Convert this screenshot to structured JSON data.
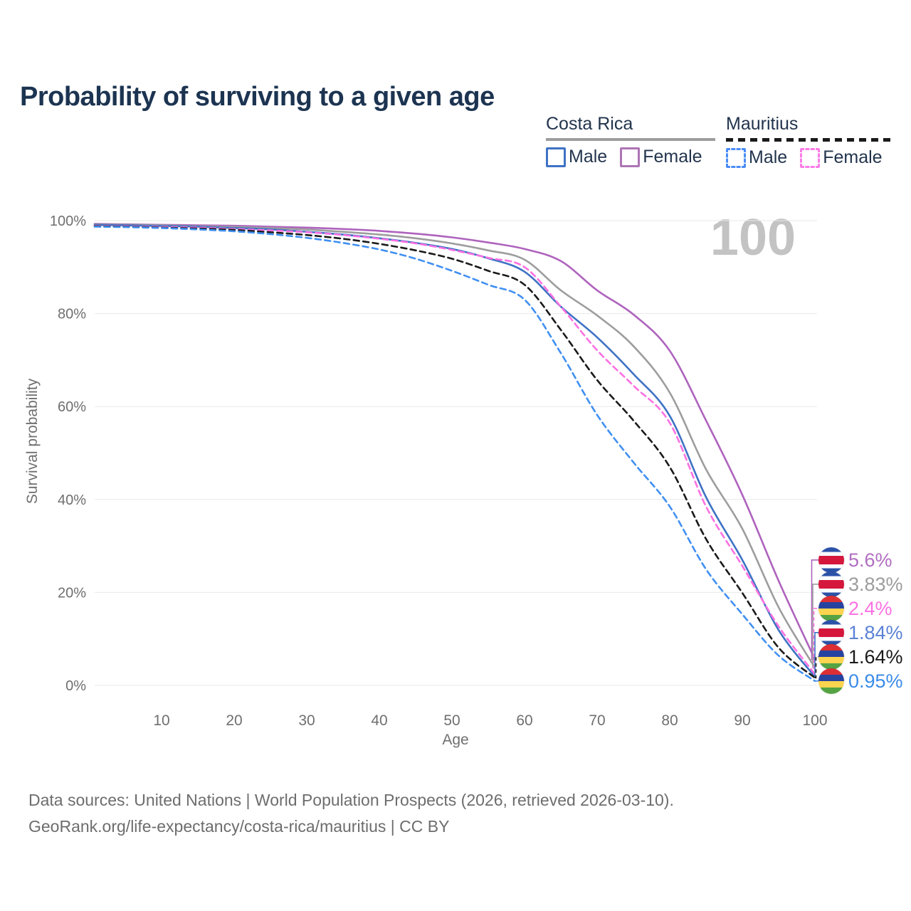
{
  "title": "Probability of surviving to a given age",
  "watermark": "100",
  "legend": {
    "groups": [
      {
        "country": "Costa Rica",
        "line_style": "solid",
        "underline_color": "#9d9d9d",
        "items": [
          {
            "label": "Male",
            "color": "#3f72c4"
          },
          {
            "label": "Female",
            "color": "#ad74b4"
          }
        ]
      },
      {
        "country": "Mauritius",
        "line_style": "dashed",
        "underline_color": "#1a1a1a",
        "items": [
          {
            "label": "Male",
            "color": "#4a8cf7"
          },
          {
            "label": "Female",
            "color": "#fb7ce8"
          }
        ]
      }
    ]
  },
  "footer": {
    "line1": "Data sources: United Nations | World Population Prospects (2026, retrieved 2026-03-10).",
    "line2": "GeoRank.org/life-expectancy/costa-rica/mauritius | CC BY"
  },
  "chart_data": {
    "type": "line",
    "title": "Probability of surviving to a given age",
    "xlabel": "Age",
    "ylabel": "Survival probability",
    "xlim": [
      0,
      100
    ],
    "ylim": [
      0,
      100
    ],
    "grid": "horizontal",
    "x_ticks": [
      10,
      20,
      30,
      40,
      50,
      60,
      70,
      80,
      90,
      100
    ],
    "y_ticks": [
      0,
      20,
      40,
      60,
      80,
      100
    ],
    "y_tick_labels": [
      "0%",
      "20%",
      "40%",
      "60%",
      "80%",
      "100%"
    ],
    "x": [
      0,
      5,
      10,
      15,
      20,
      25,
      30,
      35,
      40,
      45,
      50,
      55,
      60,
      65,
      70,
      75,
      80,
      85,
      90,
      95,
      100
    ],
    "series": [
      {
        "name": "Costa Rica Female",
        "color": "#ae63bd",
        "dash": "solid",
        "flag": "costa-rica",
        "end_label": "5.6%",
        "label_color": "#b16ec1",
        "values": [
          99.3,
          99.2,
          99.1,
          99.0,
          98.9,
          98.7,
          98.5,
          98.2,
          97.8,
          97.2,
          96.4,
          95.3,
          93.9,
          91.3,
          85.0,
          79.8,
          72.0,
          57.0,
          41.0,
          22.5,
          5.6
        ]
      },
      {
        "name": "Costa Rica",
        "color": "#9d9d9d",
        "dash": "solid",
        "flag": "costa-rica",
        "end_label": "3.83%",
        "label_color": "#9d9d9d",
        "values": [
          99.2,
          99.1,
          99.0,
          98.8,
          98.65,
          98.4,
          98.1,
          97.6,
          97.0,
          96.2,
          95.1,
          93.6,
          91.6,
          85.0,
          79.6,
          73.0,
          63.0,
          46.5,
          33.7,
          16.8,
          3.83
        ]
      },
      {
        "name": "Mauritius Female",
        "color": "#fb71e2",
        "dash": "dashed",
        "flag": "mauritius",
        "end_label": "2.4%",
        "label_color": "#fb71e2",
        "values": [
          98.9,
          98.8,
          98.65,
          98.5,
          98.2,
          97.9,
          97.5,
          96.9,
          96.1,
          95.1,
          93.7,
          92.0,
          90.0,
          81.5,
          72.1,
          64.5,
          56.5,
          38.5,
          25.7,
          12.7,
          2.4
        ]
      },
      {
        "name": "Costa Rica Male",
        "color": "#3f72c4",
        "dash": "solid",
        "flag": "costa-rica",
        "end_label": "1.84%",
        "label_color": "#5b82d6",
        "values": [
          99.1,
          99.0,
          98.85,
          98.7,
          98.4,
          98.1,
          97.6,
          97.0,
          96.2,
          95.2,
          93.9,
          91.9,
          89.0,
          81.5,
          74.9,
          67.0,
          58.0,
          40.5,
          27.0,
          11.9,
          1.84
        ]
      },
      {
        "name": "Mauritius",
        "color": "#1a1a1a",
        "dash": "dashed",
        "flag": "mauritius",
        "end_label": "1.64%",
        "label_color": "#1a1a1a",
        "values": [
          98.8,
          98.7,
          98.5,
          98.3,
          98.0,
          97.5,
          96.9,
          96.1,
          95.0,
          93.6,
          91.8,
          89.2,
          86.2,
          76.5,
          65.7,
          57.0,
          47.0,
          31.5,
          19.9,
          8.1,
          1.64
        ]
      },
      {
        "name": "Mauritius Male",
        "color": "#4190f2",
        "dash": "dashed",
        "flag": "mauritius",
        "end_label": "0.95%",
        "label_color": "#3b8ce8",
        "values": [
          98.7,
          98.6,
          98.4,
          98.1,
          97.7,
          97.1,
          96.3,
          95.2,
          93.8,
          91.8,
          89.2,
          86.2,
          83.0,
          71.5,
          58.2,
          48.0,
          38.5,
          25.0,
          15.3,
          6.4,
          0.95
        ]
      }
    ]
  }
}
